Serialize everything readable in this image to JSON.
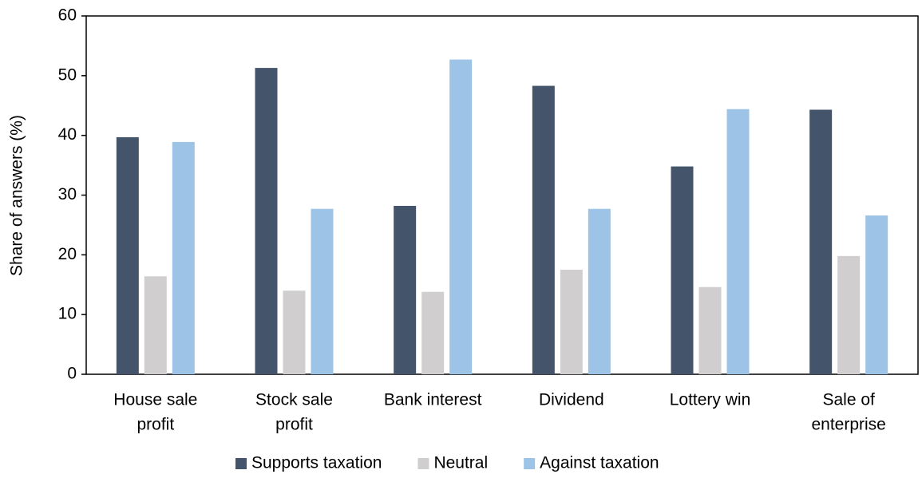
{
  "chart_data": {
    "type": "bar",
    "y_label": "Share of answers (%)",
    "categories": [
      [
        "House sale",
        "profit"
      ],
      [
        "Stock sale",
        "profit"
      ],
      [
        "Bank interest"
      ],
      [
        "Dividend"
      ],
      [
        "Lottery win"
      ],
      [
        "Sale of",
        "enterprise"
      ]
    ],
    "series": [
      {
        "name": "Supports taxation",
        "color": "#44546a",
        "values": [
          39.7,
          51.3,
          28.2,
          48.3,
          34.8,
          44.3
        ]
      },
      {
        "name": "Neutral",
        "color": "#d0cece",
        "values": [
          16.4,
          14.0,
          13.8,
          17.5,
          14.6,
          19.8
        ]
      },
      {
        "name": "Against taxation",
        "color": "#9dc3e6",
        "values": [
          38.9,
          27.7,
          52.7,
          27.7,
          44.4,
          26.6
        ]
      }
    ],
    "ylim": [
      0,
      60
    ],
    "yticks": [
      0,
      10,
      20,
      30,
      40,
      50,
      60
    ],
    "legend": "bottom"
  }
}
